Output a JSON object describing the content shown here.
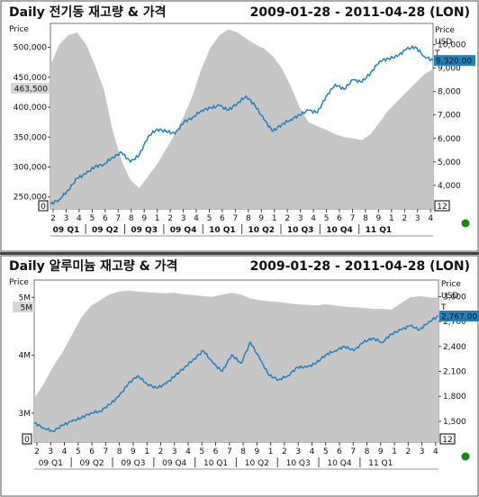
{
  "colors": {
    "volume_fill": "#c6c6c6",
    "price_line": "#1e82be",
    "price_tag_fill": "#1e82be",
    "indicator_dot": "#118c11"
  },
  "chart_data": [
    {
      "type": "area",
      "title": "Daily 전기동 재고량 & 가격",
      "date_range": "2009-01-28 - 2011-04-28 (LON)",
      "left_axis_title": "Price",
      "right_axis_title": [
        "Price",
        "USD",
        "T"
      ],
      "x_ticks": [
        "2",
        "3",
        "4",
        "5",
        "6",
        "7",
        "8",
        "9",
        "1",
        "2",
        "3",
        "4",
        "5",
        "6",
        "7",
        "8",
        "9",
        "1",
        "2",
        "3",
        "4",
        "5",
        "6",
        "7",
        "8",
        "9",
        "1",
        "2",
        "3",
        "4"
      ],
      "quarters": [
        "09 Q1",
        "09 Q2",
        "09 Q3",
        "09 Q4",
        "10 Q1",
        "10 Q2",
        "10 Q3",
        "10 Q4",
        "11 Q1"
      ],
      "left_ticks": [
        "250,000",
        "300,000",
        "350,000",
        "400,000",
        "450,000",
        "500,000"
      ],
      "left_range": [
        230000,
        540000
      ],
      "left_tag": "463,500",
      "left_small_box": "0",
      "right_ticks": [
        "4,000",
        "5,000",
        "6,000",
        "7,000",
        "8,000",
        "9,000",
        "10,000"
      ],
      "right_range": [
        3000,
        10900
      ],
      "right_tag": "9,320.00",
      "right_small_box": "12",
      "series": [
        {
          "role": "inventory",
          "points": [
            [
              0,
              470000
            ],
            [
              1,
              505000
            ],
            [
              2,
              520000
            ],
            [
              3,
              525000
            ],
            [
              4,
              505000
            ],
            [
              5,
              470000
            ],
            [
              6,
              430000
            ],
            [
              7,
              360000
            ],
            [
              8,
              310000
            ],
            [
              9,
              278000
            ],
            [
              10,
              265000
            ],
            [
              11,
              285000
            ],
            [
              12,
              305000
            ],
            [
              13,
              330000
            ],
            [
              14,
              355000
            ],
            [
              15,
              385000
            ],
            [
              16,
              420000
            ],
            [
              17,
              465000
            ],
            [
              18,
              500000
            ],
            [
              19,
              520000
            ],
            [
              20,
              530000
            ],
            [
              21,
              525000
            ],
            [
              22,
              515000
            ],
            [
              23,
              505000
            ],
            [
              24,
              498000
            ],
            [
              25,
              485000
            ],
            [
              26,
              465000
            ],
            [
              27,
              435000
            ],
            [
              28,
              400000
            ],
            [
              29,
              375000
            ],
            [
              30,
              368000
            ],
            [
              31,
              362000
            ],
            [
              32,
              355000
            ],
            [
              33,
              350000
            ],
            [
              34,
              348000
            ],
            [
              35,
              345000
            ],
            [
              36,
              355000
            ],
            [
              37,
              375000
            ],
            [
              38,
              395000
            ],
            [
              39,
              410000
            ],
            [
              40,
              425000
            ],
            [
              41,
              440000
            ],
            [
              42,
              455000
            ],
            [
              43,
              463500
            ]
          ]
        },
        {
          "role": "price",
          "points": [
            [
              0,
              3200
            ],
            [
              1,
              3400
            ],
            [
              2,
              3800
            ],
            [
              3,
              4300
            ],
            [
              4,
              4500
            ],
            [
              5,
              4800
            ],
            [
              6,
              4900
            ],
            [
              7,
              5200
            ],
            [
              8,
              5400
            ],
            [
              9,
              5000
            ],
            [
              10,
              5300
            ],
            [
              11,
              6100
            ],
            [
              12,
              6400
            ],
            [
              13,
              6300
            ],
            [
              14,
              6200
            ],
            [
              15,
              6700
            ],
            [
              16,
              6900
            ],
            [
              17,
              7200
            ],
            [
              18,
              7300
            ],
            [
              19,
              7400
            ],
            [
              20,
              7200
            ],
            [
              21,
              7500
            ],
            [
              22,
              7800
            ],
            [
              23,
              7400
            ],
            [
              24,
              6800
            ],
            [
              25,
              6300
            ],
            [
              26,
              6600
            ],
            [
              27,
              6800
            ],
            [
              28,
              7000
            ],
            [
              29,
              7200
            ],
            [
              30,
              7100
            ],
            [
              31,
              7800
            ],
            [
              32,
              8300
            ],
            [
              33,
              8100
            ],
            [
              34,
              8500
            ],
            [
              35,
              8400
            ],
            [
              36,
              8800
            ],
            [
              37,
              9300
            ],
            [
              38,
              9400
            ],
            [
              39,
              9500
            ],
            [
              40,
              9800
            ],
            [
              41,
              9900
            ],
            [
              42,
              9500
            ],
            [
              43,
              9320
            ]
          ]
        }
      ]
    },
    {
      "type": "area",
      "title": "Daily 알루미늄 재고량 & 가격",
      "date_range": "2009-01-28 - 2011-04-28 (LON)",
      "left_axis_title": "Price",
      "right_axis_title": [
        "Price",
        "USD",
        "T"
      ],
      "x_ticks": [
        "2",
        "3",
        "4",
        "5",
        "6",
        "7",
        "8",
        "9",
        "1",
        "2",
        "3",
        "4",
        "5",
        "6",
        "7",
        "8",
        "9",
        "1",
        "2",
        "3",
        "4",
        "5",
        "6",
        "7",
        "8",
        "9",
        "1",
        "2",
        "3",
        "4"
      ],
      "quarters": [
        "09 Q1",
        "09 Q2",
        "09 Q3",
        "09 Q4",
        "10 Q1",
        "10 Q2",
        "10 Q3",
        "10 Q4",
        "11 Q1"
      ],
      "left_ticks": [
        "3M",
        "4M",
        "5M"
      ],
      "left_range": [
        2500000,
        5300000
      ],
      "left_tag": "5M",
      "left_small_box": "0",
      "right_ticks": [
        "1,500",
        "1,800",
        "2,100",
        "2,400",
        "2,700",
        "3,000"
      ],
      "right_range": [
        1250,
        3200
      ],
      "right_tag": "2,767.00",
      "right_small_box": "12",
      "series": [
        {
          "role": "inventory",
          "points": [
            [
              0,
              3250000
            ],
            [
              1,
              3500000
            ],
            [
              2,
              3800000
            ],
            [
              3,
              4050000
            ],
            [
              4,
              4350000
            ],
            [
              5,
              4650000
            ],
            [
              6,
              4850000
            ],
            [
              7,
              4950000
            ],
            [
              8,
              5050000
            ],
            [
              9,
              5100000
            ],
            [
              10,
              5120000
            ],
            [
              11,
              5100000
            ],
            [
              12,
              5090000
            ],
            [
              13,
              5080000
            ],
            [
              14,
              5070000
            ],
            [
              15,
              5080000
            ],
            [
              16,
              5050000
            ],
            [
              17,
              5040000
            ],
            [
              18,
              5020000
            ],
            [
              19,
              5010000
            ],
            [
              20,
              5050000
            ],
            [
              21,
              5080000
            ],
            [
              22,
              5050000
            ],
            [
              23,
              4980000
            ],
            [
              24,
              4950000
            ],
            [
              25,
              4930000
            ],
            [
              26,
              4920000
            ],
            [
              27,
              4900000
            ],
            [
              28,
              4880000
            ],
            [
              29,
              4870000
            ],
            [
              30,
              4860000
            ],
            [
              31,
              4880000
            ],
            [
              32,
              4860000
            ],
            [
              33,
              4840000
            ],
            [
              34,
              4830000
            ],
            [
              35,
              4820000
            ],
            [
              36,
              4800000
            ],
            [
              37,
              4800000
            ],
            [
              38,
              4790000
            ],
            [
              39,
              4900000
            ],
            [
              40,
              5000000
            ],
            [
              41,
              5020000
            ],
            [
              42,
              5000000
            ],
            [
              43,
              4990000
            ]
          ]
        },
        {
          "role": "price",
          "points": [
            [
              0,
              1480
            ],
            [
              1,
              1420
            ],
            [
              2,
              1380
            ],
            [
              3,
              1450
            ],
            [
              4,
              1500
            ],
            [
              5,
              1540
            ],
            [
              6,
              1600
            ],
            [
              7,
              1620
            ],
            [
              8,
              1700
            ],
            [
              9,
              1800
            ],
            [
              10,
              1950
            ],
            [
              11,
              2050
            ],
            [
              12,
              1950
            ],
            [
              13,
              1900
            ],
            [
              14,
              1950
            ],
            [
              15,
              2050
            ],
            [
              16,
              2150
            ],
            [
              17,
              2250
            ],
            [
              18,
              2350
            ],
            [
              19,
              2200
            ],
            [
              20,
              2100
            ],
            [
              21,
              2300
            ],
            [
              22,
              2200
            ],
            [
              23,
              2450
            ],
            [
              24,
              2250
            ],
            [
              25,
              2050
            ],
            [
              26,
              2000
            ],
            [
              27,
              2050
            ],
            [
              28,
              2150
            ],
            [
              29,
              2150
            ],
            [
              30,
              2200
            ],
            [
              31,
              2300
            ],
            [
              32,
              2350
            ],
            [
              33,
              2400
            ],
            [
              34,
              2350
            ],
            [
              35,
              2450
            ],
            [
              36,
              2500
            ],
            [
              37,
              2450
            ],
            [
              38,
              2550
            ],
            [
              39,
              2600
            ],
            [
              40,
              2650
            ],
            [
              41,
              2600
            ],
            [
              42,
              2700
            ],
            [
              43,
              2767
            ]
          ]
        }
      ]
    }
  ]
}
